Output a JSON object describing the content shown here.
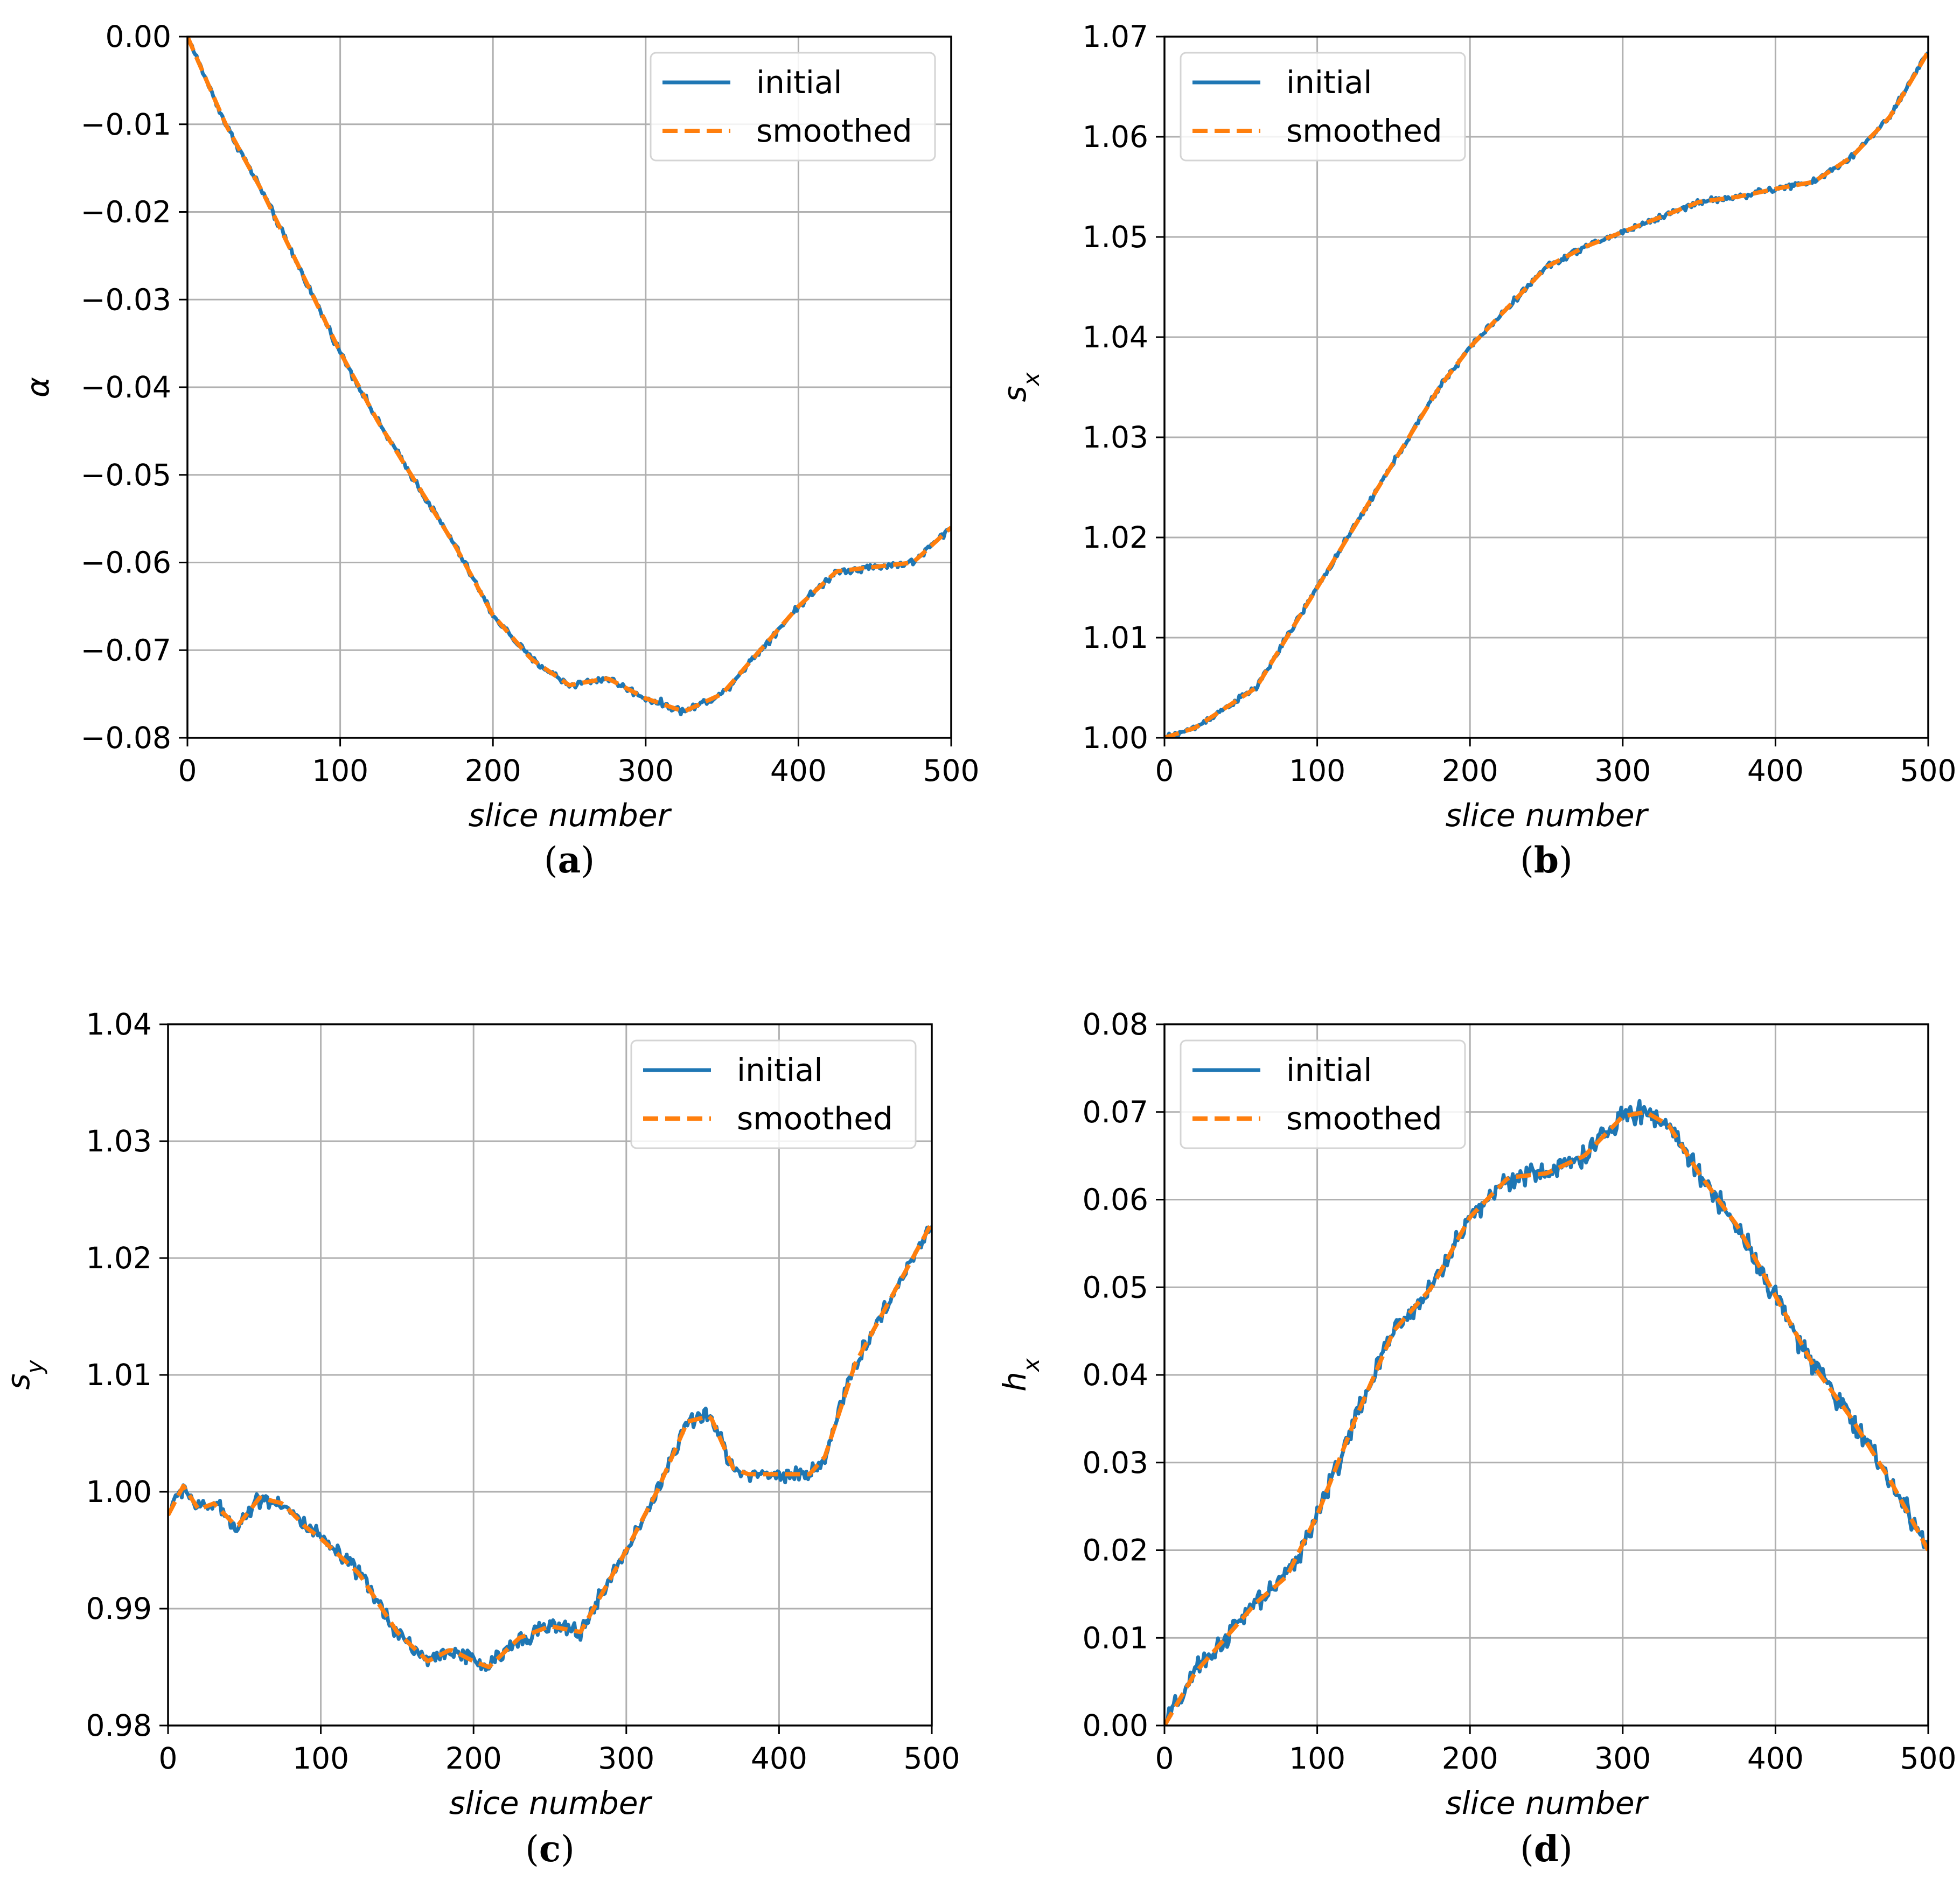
{
  "colors": {
    "initial": "#1f77b4",
    "smoothed": "#ff7f0e",
    "grid": "#b0b0b0",
    "axes": "#000000"
  },
  "chart_data": [
    {
      "type": "line",
      "panel_label": "(a)",
      "panel_letter": "a",
      "xlabel": "slice number",
      "ylabel": "α",
      "ylabel_sub": "",
      "xlim": [
        0,
        500
      ],
      "ylim": [
        -0.08,
        0.0
      ],
      "xticks": [
        0,
        100,
        200,
        300,
        400,
        500
      ],
      "xtick_labels": [
        "0",
        "100",
        "200",
        "300",
        "400",
        "500"
      ],
      "yticks": [
        -0.08,
        -0.07,
        -0.06,
        -0.05,
        -0.04,
        -0.03,
        -0.02,
        -0.01,
        0.0
      ],
      "ytick_labels": [
        "−0.08",
        "−0.07",
        "−0.06",
        "−0.05",
        "−0.04",
        "−0.03",
        "−0.02",
        "−0.01",
        "0.00"
      ],
      "legend": {
        "position": "upper right",
        "entries": [
          "initial",
          "smoothed"
        ]
      },
      "noise": 0.0004,
      "series": [
        {
          "name": "initial",
          "style": "solid",
          "x": [
            0,
            25,
            50,
            75,
            100,
            125,
            150,
            175,
            200,
            225,
            250,
            275,
            300,
            325,
            350,
            375,
            400,
            425,
            450,
            475,
            500
          ],
          "y": [
            0.0,
            -0.01,
            -0.018,
            -0.027,
            -0.036,
            -0.044,
            -0.051,
            -0.058,
            -0.066,
            -0.071,
            -0.074,
            -0.0732,
            -0.0755,
            -0.077,
            -0.075,
            -0.07,
            -0.065,
            -0.061,
            -0.0605,
            -0.06,
            -0.056
          ]
        },
        {
          "name": "smoothed",
          "style": "dashed",
          "x": [
            0,
            25,
            50,
            75,
            100,
            125,
            150,
            175,
            200,
            225,
            250,
            275,
            300,
            325,
            350,
            375,
            400,
            425,
            450,
            475,
            500
          ],
          "y": [
            0.0,
            -0.01,
            -0.018,
            -0.027,
            -0.036,
            -0.044,
            -0.051,
            -0.058,
            -0.066,
            -0.071,
            -0.074,
            -0.0732,
            -0.0755,
            -0.077,
            -0.075,
            -0.07,
            -0.065,
            -0.061,
            -0.0605,
            -0.06,
            -0.056
          ]
        }
      ]
    },
    {
      "type": "line",
      "panel_label": "(b)",
      "panel_letter": "b",
      "xlabel": "slice number",
      "ylabel": "s",
      "ylabel_sub": "x",
      "xlim": [
        0,
        500
      ],
      "ylim": [
        1.0,
        1.07
      ],
      "xticks": [
        0,
        100,
        200,
        300,
        400,
        500
      ],
      "xtick_labels": [
        "0",
        "100",
        "200",
        "300",
        "400",
        "500"
      ],
      "yticks": [
        1.0,
        1.01,
        1.02,
        1.03,
        1.04,
        1.05,
        1.06,
        1.07
      ],
      "ytick_labels": [
        "1.00",
        "1.01",
        "1.02",
        "1.03",
        "1.04",
        "1.05",
        "1.06",
        "1.07"
      ],
      "legend": {
        "position": "upper left",
        "entries": [
          "initial",
          "smoothed"
        ]
      },
      "noise": 0.0003,
      "series": [
        {
          "name": "initial",
          "style": "solid",
          "x": [
            0,
            20,
            40,
            60,
            80,
            100,
            120,
            140,
            160,
            180,
            200,
            225,
            250,
            275,
            300,
            325,
            350,
            375,
            400,
            425,
            450,
            475,
            500
          ],
          "y": [
            1.0,
            1.001,
            1.003,
            1.005,
            1.01,
            1.015,
            1.02,
            1.025,
            1.03,
            1.035,
            1.039,
            1.043,
            1.047,
            1.049,
            1.0505,
            1.052,
            1.0535,
            1.054,
            1.0548,
            1.0555,
            1.058,
            1.062,
            1.0685
          ]
        },
        {
          "name": "smoothed",
          "style": "dashed",
          "x": [
            0,
            20,
            40,
            60,
            80,
            100,
            120,
            140,
            160,
            180,
            200,
            225,
            250,
            275,
            300,
            325,
            350,
            375,
            400,
            425,
            450,
            475,
            500
          ],
          "y": [
            1.0,
            1.001,
            1.003,
            1.005,
            1.01,
            1.015,
            1.02,
            1.025,
            1.03,
            1.035,
            1.039,
            1.043,
            1.047,
            1.049,
            1.0505,
            1.052,
            1.0535,
            1.054,
            1.0548,
            1.0555,
            1.058,
            1.062,
            1.0685
          ]
        }
      ]
    },
    {
      "type": "line",
      "panel_label": "(c)",
      "panel_letter": "c",
      "xlabel": "slice number",
      "ylabel": "s",
      "ylabel_sub": "y",
      "xlim": [
        0,
        500
      ],
      "ylim": [
        0.98,
        1.04
      ],
      "xticks": [
        0,
        100,
        200,
        300,
        400,
        500
      ],
      "xtick_labels": [
        "0",
        "100",
        "200",
        "300",
        "400",
        "500"
      ],
      "yticks": [
        0.98,
        0.99,
        1.0,
        1.01,
        1.02,
        1.03,
        1.04
      ],
      "ytick_labels": [
        "0.98",
        "0.99",
        "1.00",
        "1.01",
        "1.02",
        "1.03",
        "1.04"
      ],
      "legend": {
        "position": "upper right",
        "entries": [
          "initial",
          "smoothed"
        ]
      },
      "noise": 0.0007,
      "series": [
        {
          "name": "initial",
          "style": "solid",
          "x": [
            0,
            10,
            20,
            30,
            45,
            60,
            75,
            90,
            100,
            125,
            150,
            170,
            185,
            200,
            210,
            230,
            250,
            270,
            300,
            320,
            340,
            355,
            370,
            380,
            400,
            420,
            430,
            450,
            475,
            500
          ],
          "y": [
            0.998,
            1.0005,
            0.9985,
            0.999,
            0.997,
            0.9995,
            0.999,
            0.997,
            0.996,
            0.993,
            0.988,
            0.9855,
            0.9865,
            0.9855,
            0.985,
            0.9875,
            0.9885,
            0.988,
            0.995,
            1.0,
            1.006,
            1.0065,
            1.002,
            1.0015,
            1.0015,
            1.0015,
            1.003,
            1.011,
            1.017,
            1.023
          ]
        },
        {
          "name": "smoothed",
          "style": "dashed",
          "x": [
            0,
            10,
            20,
            30,
            45,
            60,
            75,
            90,
            100,
            125,
            150,
            170,
            185,
            200,
            210,
            230,
            250,
            270,
            300,
            320,
            340,
            355,
            370,
            380,
            400,
            420,
            430,
            450,
            475,
            500
          ],
          "y": [
            0.998,
            1.0005,
            0.9985,
            0.999,
            0.997,
            0.9995,
            0.999,
            0.997,
            0.996,
            0.993,
            0.988,
            0.9855,
            0.9865,
            0.9855,
            0.985,
            0.9875,
            0.9885,
            0.988,
            0.995,
            1.0,
            1.006,
            1.0065,
            1.002,
            1.0015,
            1.0015,
            1.0015,
            1.003,
            1.011,
            1.017,
            1.023
          ]
        }
      ]
    },
    {
      "type": "line",
      "panel_label": "(d)",
      "panel_letter": "d",
      "xlabel": "slice number",
      "ylabel": "h",
      "ylabel_sub": "x",
      "xlim": [
        0,
        500
      ],
      "ylim": [
        0.0,
        0.08
      ],
      "xticks": [
        0,
        100,
        200,
        300,
        400,
        500
      ],
      "xtick_labels": [
        "0",
        "100",
        "200",
        "300",
        "400",
        "500"
      ],
      "yticks": [
        0.0,
        0.01,
        0.02,
        0.03,
        0.04,
        0.05,
        0.06,
        0.07,
        0.08
      ],
      "ytick_labels": [
        "0.00",
        "0.01",
        "0.02",
        "0.03",
        "0.04",
        "0.05",
        "0.06",
        "0.07",
        "0.08"
      ],
      "legend": {
        "position": "upper left",
        "entries": [
          "initial",
          "smoothed"
        ]
      },
      "noise": 0.0012,
      "series": [
        {
          "name": "initial",
          "style": "solid",
          "x": [
            0,
            20,
            40,
            60,
            80,
            100,
            125,
            150,
            175,
            200,
            225,
            250,
            275,
            300,
            315,
            330,
            350,
            375,
            400,
            425,
            450,
            475,
            500
          ],
          "y": [
            0.0,
            0.006,
            0.01,
            0.014,
            0.017,
            0.024,
            0.035,
            0.045,
            0.05,
            0.058,
            0.0625,
            0.063,
            0.065,
            0.0695,
            0.07,
            0.0685,
            0.063,
            0.057,
            0.049,
            0.041,
            0.035,
            0.028,
            0.02
          ]
        },
        {
          "name": "smoothed",
          "style": "dashed",
          "x": [
            0,
            20,
            40,
            60,
            80,
            100,
            125,
            150,
            175,
            200,
            225,
            250,
            275,
            300,
            315,
            330,
            350,
            375,
            400,
            425,
            450,
            475,
            500
          ],
          "y": [
            0.0,
            0.006,
            0.01,
            0.014,
            0.017,
            0.024,
            0.035,
            0.045,
            0.05,
            0.058,
            0.0625,
            0.063,
            0.065,
            0.0695,
            0.07,
            0.0685,
            0.063,
            0.057,
            0.049,
            0.041,
            0.035,
            0.028,
            0.02
          ]
        }
      ]
    }
  ]
}
